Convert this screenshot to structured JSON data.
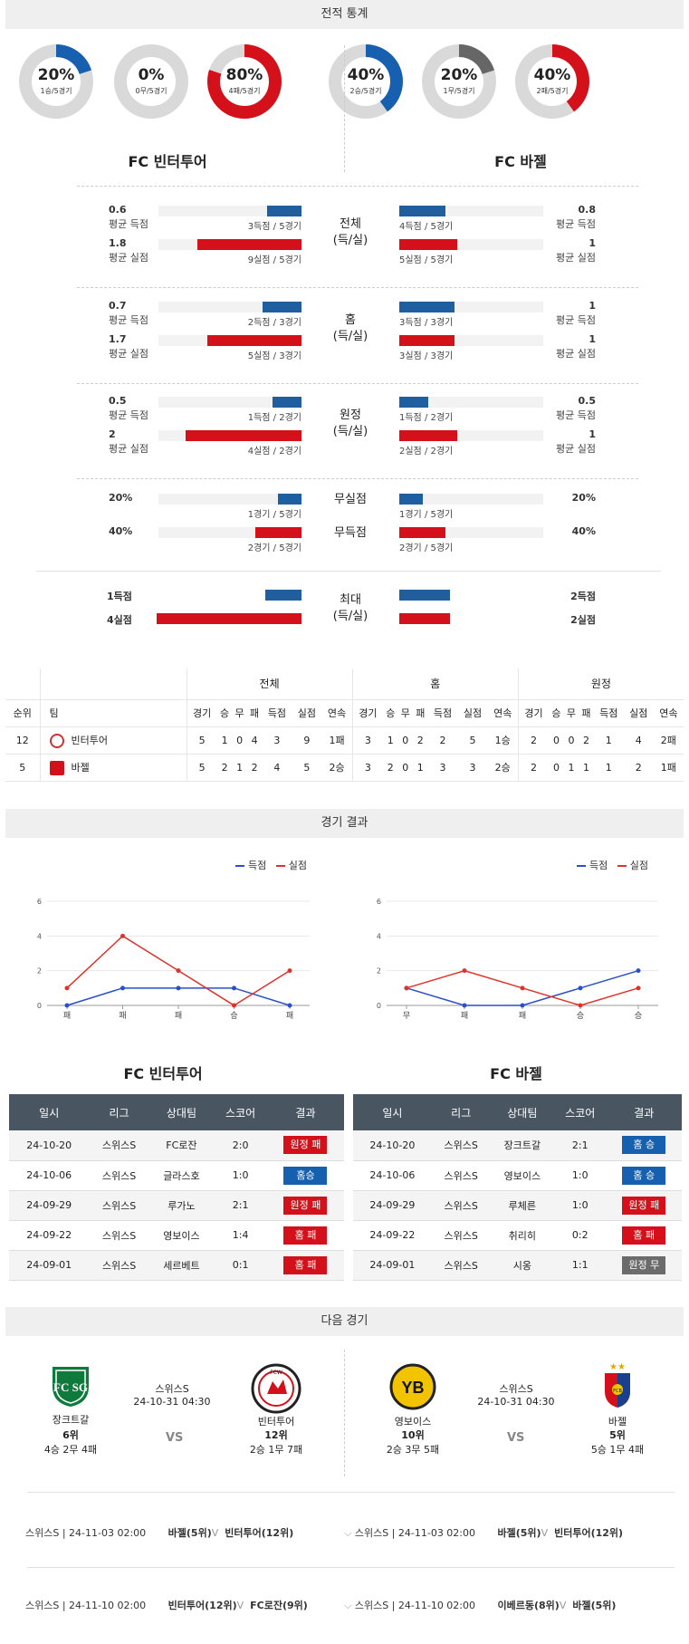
{
  "stats_title": "전적 통계",
  "donuts_left": [
    {
      "pct": "20%",
      "sub": "1승/5경기",
      "color": "#1760b0",
      "value": 0.2
    },
    {
      "pct": "0%",
      "sub": "0무/5경기",
      "color": "#666666",
      "value": 0.0
    },
    {
      "pct": "80%",
      "sub": "4패/5경기",
      "color": "#d4111b",
      "value": 0.8
    }
  ],
  "donuts_right": [
    {
      "pct": "40%",
      "sub": "2승/5경기",
      "color": "#1760b0",
      "value": 0.4
    },
    {
      "pct": "20%",
      "sub": "1무/5경기",
      "color": "#666666",
      "value": 0.2
    },
    {
      "pct": "40%",
      "sub": "2패/5경기",
      "color": "#d4111b",
      "value": 0.4
    }
  ],
  "team_left": "FC 빈터투어",
  "team_right": "FC 바젤",
  "blocks": [
    {
      "label1": "전체",
      "label2": "(득/실)",
      "rows": [
        {
          "lv": "0.6",
          "lc": "평균 득점",
          "lt": "3득점 / 5경기",
          "lf": 0.24,
          "rt": "4득점 / 5경기",
          "rf": 0.32,
          "rv": "0.8",
          "rc": "평균 득점",
          "color": "blue"
        },
        {
          "lv": "1.8",
          "lc": "평균 실점",
          "lt": "9실점 / 5경기",
          "lf": 0.72,
          "rt": "5실점 / 5경기",
          "rf": 0.4,
          "rv": "1",
          "rc": "평균 실점",
          "color": "red"
        }
      ]
    },
    {
      "label1": "홈",
      "label2": "(득/실)",
      "rows": [
        {
          "lv": "0.7",
          "lc": "평균 득점",
          "lt": "2득점 / 3경기",
          "lf": 0.27,
          "rt": "3득점 / 3경기",
          "rf": 0.38,
          "rv": "1",
          "rc": "평균 득점",
          "color": "blue"
        },
        {
          "lv": "1.7",
          "lc": "평균 실점",
          "lt": "5실점 / 3경기",
          "lf": 0.65,
          "rt": "3실점 / 3경기",
          "rf": 0.38,
          "rv": "1",
          "rc": "평균 실점",
          "color": "red"
        }
      ]
    },
    {
      "label1": "원정",
      "label2": "(득/실)",
      "rows": [
        {
          "lv": "0.5",
          "lc": "평균 득점",
          "lt": "1득점 / 2경기",
          "lf": 0.2,
          "rt": "1득점 / 2경기",
          "rf": 0.2,
          "rv": "0.5",
          "rc": "평균 득점",
          "color": "blue"
        },
        {
          "lv": "2",
          "lc": "평균 실점",
          "lt": "4실점 / 2경기",
          "lf": 0.8,
          "rt": "2실점 / 2경기",
          "rf": 0.4,
          "rv": "1",
          "rc": "평균 실점",
          "color": "red"
        }
      ]
    }
  ],
  "cleansheet": {
    "l1": "무실점",
    "l2": "무득점",
    "rows": [
      {
        "lv": "20%",
        "lt": "1경기 / 5경기",
        "lf": 0.2,
        "rt": "1경기 / 5경기",
        "rf": 0.2,
        "rv": "20%",
        "color": "blue"
      },
      {
        "lv": "40%",
        "lt": "2경기 / 5경기",
        "lf": 0.4,
        "rt": "2경기 / 5경기",
        "rf": 0.4,
        "rv": "40%",
        "color": "red"
      }
    ]
  },
  "max": {
    "label1": "최대",
    "label2": "(득/실)",
    "rows": [
      {
        "lv": "1득점",
        "lf": 0.25,
        "rf": 0.5,
        "rv": "2득점",
        "color": "blue"
      },
      {
        "lv": "4실점",
        "lf": 1.0,
        "rf": 0.5,
        "rv": "2실점",
        "color": "red"
      }
    ]
  },
  "rank_table": {
    "groups": [
      "전체",
      "홈",
      "원정"
    ],
    "rank_hdr": "순위",
    "team_hdr": "팀",
    "cols": [
      "경기",
      "승",
      "무",
      "패",
      "득점",
      "실점",
      "연속"
    ],
    "rows": [
      {
        "rank": "12",
        "team": "빈터투어",
        "all": [
          "5",
          "1",
          "0",
          "4",
          "3",
          "9",
          "1패"
        ],
        "home": [
          "3",
          "1",
          "0",
          "2",
          "2",
          "5",
          "1승"
        ],
        "away": [
          "2",
          "0",
          "0",
          "2",
          "1",
          "4",
          "2패"
        ]
      },
      {
        "rank": "5",
        "team": "바젤",
        "all": [
          "5",
          "2",
          "1",
          "2",
          "4",
          "5",
          "2승"
        ],
        "home": [
          "3",
          "2",
          "0",
          "1",
          "3",
          "3",
          "2승"
        ],
        "away": [
          "2",
          "0",
          "1",
          "1",
          "1",
          "2",
          "1패"
        ]
      }
    ]
  },
  "results_title": "경기 결과",
  "legend_score": "득점",
  "legend_concede": "실점",
  "chart_data": [
    {
      "type": "line",
      "title": "",
      "x": [
        "패",
        "패",
        "패",
        "승",
        "패"
      ],
      "ylim": [
        0,
        6
      ],
      "yticks": [
        0,
        2,
        4,
        6
      ],
      "series": [
        {
          "name": "득점",
          "values": [
            0,
            1,
            1,
            1,
            0
          ],
          "color": "#2a4fc8"
        },
        {
          "name": "실점",
          "values": [
            1,
            4,
            2,
            0,
            2
          ],
          "color": "#e0322a"
        }
      ]
    },
    {
      "type": "line",
      "title": "",
      "x": [
        "무",
        "패",
        "패",
        "승",
        "승"
      ],
      "ylim": [
        0,
        6
      ],
      "yticks": [
        0,
        2,
        4,
        6
      ],
      "series": [
        {
          "name": "득점",
          "values": [
            1,
            0,
            0,
            1,
            2
          ],
          "color": "#2a4fc8"
        },
        {
          "name": "실점",
          "values": [
            1,
            2,
            1,
            0,
            1
          ],
          "color": "#e0322a"
        }
      ]
    }
  ],
  "result_headers": [
    "일시",
    "리그",
    "상대팀",
    "스코어",
    "결과"
  ],
  "results_left": [
    {
      "date": "24-10-20",
      "league": "스위스S",
      "opp": "FC로잔",
      "score": "2:0",
      "res": "원정 패",
      "c": "red"
    },
    {
      "date": "24-10-06",
      "league": "스위스S",
      "opp": "글라스호",
      "score": "1:0",
      "res": "홈승",
      "c": "blue"
    },
    {
      "date": "24-09-29",
      "league": "스위스S",
      "opp": "루가노",
      "score": "2:1",
      "res": "원정 패",
      "c": "red"
    },
    {
      "date": "24-09-22",
      "league": "스위스S",
      "opp": "영보이스",
      "score": "1:4",
      "res": "홈 패",
      "c": "red"
    },
    {
      "date": "24-09-01",
      "league": "스위스S",
      "opp": "세르베트",
      "score": "0:1",
      "res": "홈 패",
      "c": "red"
    }
  ],
  "results_right": [
    {
      "date": "24-10-20",
      "league": "스위스S",
      "opp": "장크트갈",
      "score": "2:1",
      "res": "홈 승",
      "c": "blue"
    },
    {
      "date": "24-10-06",
      "league": "스위스S",
      "opp": "영보이스",
      "score": "1:0",
      "res": "홈 승",
      "c": "blue"
    },
    {
      "date": "24-09-29",
      "league": "스위스S",
      "opp": "루체른",
      "score": "1:0",
      "res": "원정 패",
      "c": "red"
    },
    {
      "date": "24-09-22",
      "league": "스위스S",
      "opp": "취리히",
      "score": "0:2",
      "res": "홈 패",
      "c": "red"
    },
    {
      "date": "24-09-01",
      "league": "스위스S",
      "opp": "시옹",
      "score": "1:1",
      "res": "원정 무",
      "c": "gray"
    }
  ],
  "next_title": "다음 경기",
  "next_left": {
    "league": "스위스S",
    "dt": "24-10-31 04:30",
    "vs": "VS",
    "home": {
      "name": "장크트갈",
      "rank": "6위",
      "rec": "4승 2무 4패",
      "logo": "FC SG"
    },
    "away": {
      "name": "빈터투어",
      "rank": "12위",
      "rec": "2승 1무 7패",
      "logo": "FCW"
    }
  },
  "next_right": {
    "league": "스위스S",
    "dt": "24-10-31 04:30",
    "vs": "VS",
    "home": {
      "name": "영보이스",
      "rank": "10위",
      "rec": "2승 3무 5패",
      "logo": "YB"
    },
    "away": {
      "name": "바젤",
      "rank": "5위",
      "rec": "5승 1무 4패",
      "logo": "FCB"
    }
  },
  "fixtures": [
    {
      "left": {
        "info": "스위스S | 24-11-03 02:00",
        "t1": "바젤(5위)",
        "v": "V",
        "t2": "빈터투어(12위)"
      },
      "right": {
        "info": "스위스S | 24-11-03 02:00",
        "t1": "바젤(5위)",
        "v": "V",
        "t2": "빈터투어(12위)"
      }
    },
    {
      "left": {
        "info": "스위스S | 24-11-10 02:00",
        "t1": "빈터투어(12위)",
        "v": "V",
        "t2": "FC로잔(9위)"
      },
      "right": {
        "info": "스위스S | 24-11-10 02:00",
        "t1": "이베르동(8위)",
        "v": "V",
        "t2": "바젤(5위)"
      }
    }
  ]
}
